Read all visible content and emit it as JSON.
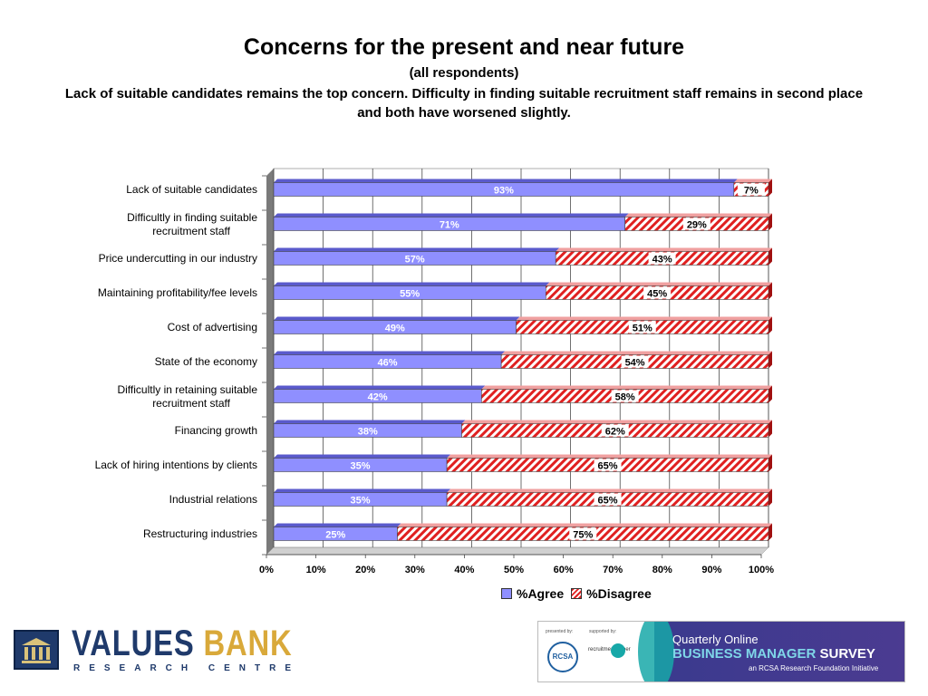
{
  "title": "Concerns for the present and near future",
  "subtitle": "(all respondents)",
  "headline": "Lack of suitable candidates remains the top concern. Difficulty in finding suitable recruitment staff remains in second place and both have worsened slightly.",
  "colors": {
    "agree": "#8f8fff",
    "agree_dark": "#5a5acc",
    "disagree": "#e02020",
    "wall": "#7a7a7a"
  },
  "chart_data": {
    "type": "bar",
    "orientation": "horizontal",
    "stacked": "100%",
    "categories": [
      "Lack of suitable candidates",
      "Difficultly in finding suitable recruitment staff",
      "Price undercutting in our industry",
      "Maintaining profitability/fee levels",
      "Cost of advertising",
      "State of the economy",
      "Difficultly in retaining suitable recruitment staff",
      "Financing growth",
      "Lack of hiring intentions by clients",
      "Industrial relations",
      "Restructuring industries"
    ],
    "category_lines": [
      [
        "Lack of suitable candidates"
      ],
      [
        "Difficultly in finding suitable",
        "recruitment staff"
      ],
      [
        "Price undercutting in our industry"
      ],
      [
        "Maintaining profitability/fee levels"
      ],
      [
        "Cost of advertising"
      ],
      [
        "State of the economy"
      ],
      [
        "Difficultly in retaining suitable",
        "recruitment staff"
      ],
      [
        "Financing growth"
      ],
      [
        "Lack of hiring intentions by clients"
      ],
      [
        "Industrial relations"
      ],
      [
        "Restructuring industries"
      ]
    ],
    "series": [
      {
        "name": "%Agree",
        "values": [
          93,
          71,
          57,
          55,
          49,
          46,
          42,
          38,
          35,
          35,
          25
        ]
      },
      {
        "name": "%Disagree",
        "values": [
          7,
          29,
          43,
          45,
          51,
          54,
          58,
          62,
          65,
          65,
          75
        ]
      }
    ],
    "data_labels": {
      "agree": [
        "93%",
        "71%",
        "57%",
        "55%",
        "49%",
        "46%",
        "42%",
        "38%",
        "35%",
        "35%",
        "25%"
      ],
      "disagree": [
        "7%",
        "29%",
        "43%",
        "45%",
        "51%",
        "54%",
        "58%",
        "62%",
        "65%",
        "65%",
        "75%"
      ]
    },
    "x_ticks": [
      "0%",
      "10%",
      "20%",
      "30%",
      "40%",
      "50%",
      "60%",
      "70%",
      "80%",
      "90%",
      "100%"
    ],
    "xlim": [
      0,
      100
    ],
    "grid": true,
    "legend_position": "bottom"
  },
  "legend": {
    "agree": "%Agree",
    "disagree": "%Disagree"
  },
  "footer": {
    "brand_main_1": "VALUES",
    "brand_main_2": "BANK",
    "brand_sub": "RESEARCH CENTRE",
    "banner_presented": "presented by:",
    "banner_supported": "supported by:",
    "banner_rcsa": "RCSA",
    "banner_recruit": "recruitment super",
    "banner_line1": "Quarterly Online",
    "banner_line2_a": "BUSINESS MANAGER",
    "banner_line2_b": " SURVEY",
    "banner_line3": "an RCSA Research Foundation Initiative"
  }
}
